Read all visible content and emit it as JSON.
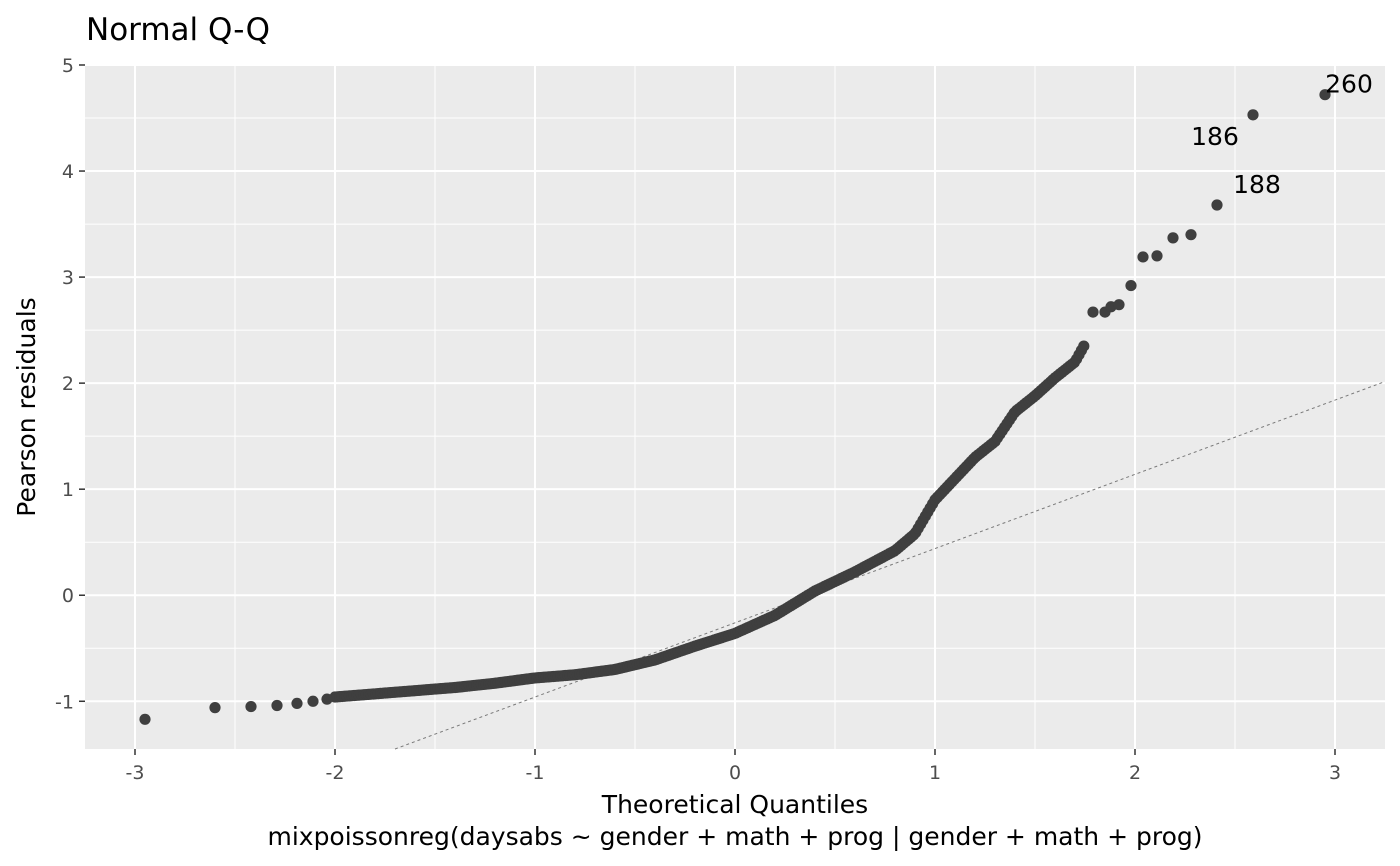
{
  "chart_data": {
    "type": "scatter",
    "title": "Normal Q-Q",
    "xlabel": "Theoretical Quantiles",
    "ylabel": "Pearson residuals",
    "caption": "mixpoissonreg(daysabs ~ gender + math + prog | gender + math + prog)",
    "xlim": [
      -3.25,
      3.25
    ],
    "ylim": [
      -1.45,
      5.0
    ],
    "x_ticks": [
      -3,
      -2,
      -1,
      0,
      1,
      2,
      3
    ],
    "x_tick_labels": [
      "-3",
      "-2",
      "-1",
      "0",
      "1",
      "2",
      "3"
    ],
    "y_ticks": [
      -1,
      0,
      1,
      2,
      3,
      4,
      5
    ],
    "y_tick_labels": [
      "-1",
      "0",
      "1",
      "2",
      "3",
      "4",
      "5"
    ],
    "grid": true,
    "reference_line": {
      "intercept": -0.26,
      "slope": 0.7
    },
    "quantile_curve": [
      [
        -2.0,
        -0.96
      ],
      [
        -1.8,
        -0.93
      ],
      [
        -1.6,
        -0.9
      ],
      [
        -1.4,
        -0.87
      ],
      [
        -1.2,
        -0.83
      ],
      [
        -1.0,
        -0.78
      ],
      [
        -0.8,
        -0.75
      ],
      [
        -0.6,
        -0.7
      ],
      [
        -0.4,
        -0.61
      ],
      [
        -0.2,
        -0.48
      ],
      [
        0.0,
        -0.36
      ],
      [
        0.2,
        -0.19
      ],
      [
        0.4,
        0.04
      ],
      [
        0.6,
        0.22
      ],
      [
        0.8,
        0.42
      ],
      [
        0.9,
        0.58
      ],
      [
        1.0,
        0.9
      ],
      [
        1.1,
        1.1
      ],
      [
        1.2,
        1.3
      ],
      [
        1.3,
        1.45
      ],
      [
        1.4,
        1.73
      ],
      [
        1.5,
        1.88
      ],
      [
        1.6,
        2.05
      ],
      [
        1.7,
        2.2
      ],
      [
        1.75,
        2.37
      ]
    ],
    "points": [
      [
        -2.95,
        -1.17
      ],
      [
        -2.6,
        -1.06
      ],
      [
        -2.42,
        -1.05
      ],
      [
        -2.29,
        -1.04
      ],
      [
        -2.19,
        -1.02
      ],
      [
        -2.11,
        -1.0
      ],
      [
        -2.04,
        -0.98
      ],
      [
        1.79,
        2.67
      ],
      [
        1.85,
        2.67
      ],
      [
        1.88,
        2.72
      ],
      [
        1.92,
        2.74
      ],
      [
        1.98,
        2.92
      ],
      [
        2.04,
        3.19
      ],
      [
        2.11,
        3.2
      ],
      [
        2.19,
        3.37
      ],
      [
        2.28,
        3.4
      ],
      [
        2.41,
        3.68
      ],
      [
        2.59,
        4.53
      ],
      [
        2.95,
        4.72
      ]
    ],
    "labeled_points": [
      {
        "label": "260",
        "x": 2.95,
        "y": 4.72
      },
      {
        "label": "186",
        "x": 2.59,
        "y": 4.53
      },
      {
        "label": "188",
        "x": 2.41,
        "y": 3.68
      }
    ],
    "colors": {
      "panel_bg": "#ebebeb",
      "grid": "#ffffff",
      "point": "#3f3f3f",
      "reference_line": "#7a7a7a",
      "tick_text": "#4d4d4d"
    }
  }
}
